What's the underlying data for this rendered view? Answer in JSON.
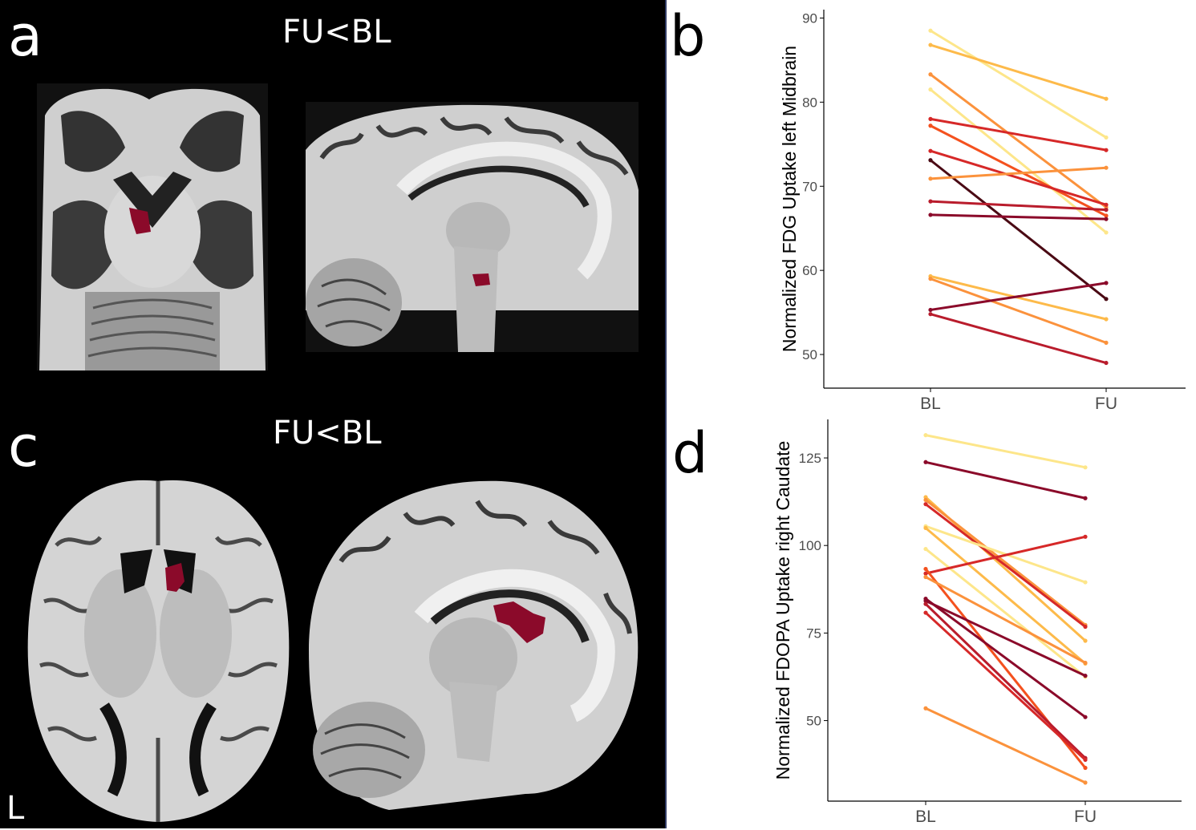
{
  "panels": {
    "a": {
      "letter": "a",
      "contrast": "FU<BL"
    },
    "b": {
      "letter": "b"
    },
    "c": {
      "letter": "c",
      "contrast": "FU<BL",
      "side": "L"
    },
    "d": {
      "letter": "d"
    }
  },
  "colors": {
    "background_black": "#000000",
    "highlight_region": "#8b0a2a",
    "palette": [
      "#fde68a",
      "#fdba4a",
      "#fb923c",
      "#f4511e",
      "#d62828",
      "#b91c2c",
      "#8b0a2a",
      "#4a0a14"
    ]
  },
  "chart_data": [
    {
      "type": "line",
      "panel": "b",
      "ylabel": "Normalized FDG Uptake left Midbrain",
      "xlabel": "",
      "categories": [
        "BL",
        "FU"
      ],
      "ylim": [
        46,
        91
      ],
      "yticks": [
        50,
        60,
        70,
        80,
        90
      ],
      "grid": false,
      "series": [
        {
          "values": [
            88.5,
            75.8
          ],
          "color": "#fde68a"
        },
        {
          "values": [
            86.8,
            80.4
          ],
          "color": "#fdba4a"
        },
        {
          "values": [
            83.3,
            67.5
          ],
          "color": "#fb923c"
        },
        {
          "values": [
            81.5,
            64.5
          ],
          "color": "#fde68a"
        },
        {
          "values": [
            78.0,
            74.3
          ],
          "color": "#d62828"
        },
        {
          "values": [
            77.2,
            66.5
          ],
          "color": "#f4511e"
        },
        {
          "values": [
            74.2,
            67.8
          ],
          "color": "#d62828"
        },
        {
          "values": [
            73.1,
            56.6
          ],
          "color": "#4a0a14"
        },
        {
          "values": [
            70.9,
            72.2
          ],
          "color": "#fb923c"
        },
        {
          "values": [
            68.2,
            67.2
          ],
          "color": "#b91c2c"
        },
        {
          "values": [
            66.6,
            66.1
          ],
          "color": "#8b0a2a"
        },
        {
          "values": [
            59.3,
            54.2
          ],
          "color": "#fdba4a"
        },
        {
          "values": [
            59.0,
            51.4
          ],
          "color": "#fb923c"
        },
        {
          "values": [
            55.3,
            58.5
          ],
          "color": "#8b0a2a"
        },
        {
          "values": [
            54.8,
            49.0
          ],
          "color": "#b91c2c"
        }
      ]
    },
    {
      "type": "line",
      "panel": "d",
      "ylabel": "Normalized FDOPA Uptake right Caudate",
      "xlabel": "",
      "categories": [
        "BL",
        "FU"
      ],
      "ylim": [
        27,
        136
      ],
      "yticks": [
        50,
        75,
        100,
        125
      ],
      "grid": false,
      "series": [
        {
          "values": [
            131.5,
            122.3
          ],
          "color": "#fde68a"
        },
        {
          "values": [
            123.8,
            113.5
          ],
          "color": "#8b0a2a"
        },
        {
          "values": [
            113.8,
            72.8
          ],
          "color": "#fdba4a"
        },
        {
          "values": [
            113.0,
            77.3
          ],
          "color": "#fb923c"
        },
        {
          "values": [
            111.8,
            76.8
          ],
          "color": "#d62828"
        },
        {
          "values": [
            105.5,
            89.5
          ],
          "color": "#fde68a"
        },
        {
          "values": [
            105.0,
            66.3
          ],
          "color": "#fdba4a"
        },
        {
          "values": [
            99.0,
            62.5
          ],
          "color": "#fde68a"
        },
        {
          "values": [
            92.0,
            102.5
          ],
          "color": "#d62828"
        },
        {
          "values": [
            93.3,
            36.5
          ],
          "color": "#f4511e"
        },
        {
          "values": [
            91.0,
            66.5
          ],
          "color": "#fb923c"
        },
        {
          "values": [
            84.8,
            51.0
          ],
          "color": "#8b0a2a"
        },
        {
          "values": [
            84.2,
            62.8
          ],
          "color": "#8b0a2a"
        },
        {
          "values": [
            83.3,
            39.3
          ],
          "color": "#b91c2c"
        },
        {
          "values": [
            80.8,
            38.8
          ],
          "color": "#d62828"
        },
        {
          "values": [
            53.5,
            32.3
          ],
          "color": "#fb923c"
        }
      ]
    }
  ]
}
